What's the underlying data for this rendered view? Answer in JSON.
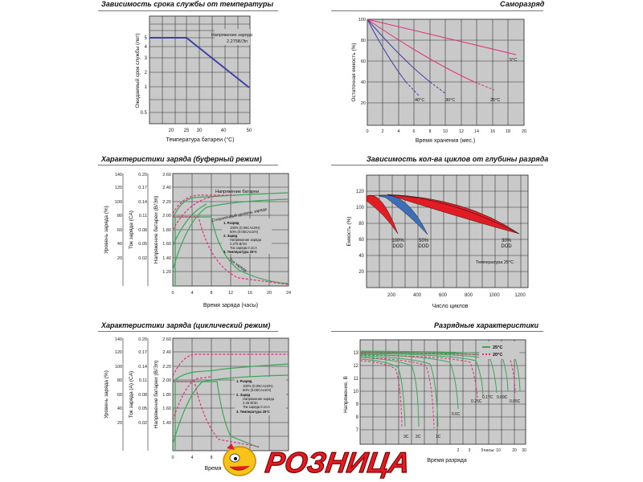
{
  "charts": {
    "life": {
      "title": "Зависимость срока службы от температуры",
      "ylabel": "Ожидаемый срок службы (лет)",
      "xlabel": "Температура батареи (°C)",
      "annotation": [
        "Напряжение заряда",
        "2.275В/Эл"
      ],
      "xticks": [
        "20",
        "25",
        "30",
        "40",
        "50"
      ],
      "yticks": [
        "5",
        "4",
        "3",
        "2",
        "1",
        "0.5"
      ]
    },
    "selfdis": {
      "title": "Саморазряд",
      "ylabel": "Остаточная емкость (%)",
      "xlabel": "Время хранения (мес.)",
      "xticks": [
        "0",
        "2",
        "4",
        "6",
        "8",
        "10",
        "12",
        "14",
        "16",
        "18",
        "20"
      ],
      "yticks": [
        "100",
        "80",
        "60",
        "40",
        "20"
      ],
      "labels": [
        "40°C",
        "30°C",
        "25°C",
        "5°C"
      ]
    },
    "float": {
      "title": "Характеристики  заряда (буферный режим)",
      "ylabel1": "Уровень заряда (%)",
      "ylabel2": "Ток заряда (CA)",
      "ylabel3": "Напряжение батареи (В/Эл)",
      "xlabel": "Время заряда (часы)",
      "y1ticks": [
        "140",
        "120",
        "100",
        "80",
        "60",
        "40",
        "20"
      ],
      "y2ticks": [
        "0.20",
        "0.17",
        "0.14",
        "0.11",
        "0.08",
        "0.05",
        "0.02"
      ],
      "y3ticks": [
        "2.60",
        "2.40",
        "2.20",
        "2.00",
        "1.80",
        "1.60",
        "1.40",
        "1.20"
      ],
      "xticks": [
        "0",
        "4",
        "8",
        "12",
        "16",
        "20",
        "24"
      ],
      "curve_labels": [
        "Напряжение батареи",
        "Сохраненный уровень заряда",
        "Ток заряда"
      ],
      "legend": [
        "1. Разряд",
        "100% (0.05CAx20ч)",
        "50% (0.05CAx10ч)",
        "2. Заряд",
        "Напряжение заряда",
        "2.275 В/Эл",
        "Ток заряда 0.1CA",
        "3. Температура 25°C"
      ]
    },
    "cycles": {
      "title": "Зависимость кол-ва циклов от глубины разряда",
      "ylabel": "Емкость (%)",
      "xlabel": "Число циклов",
      "xticks": [
        "200",
        "400",
        "600",
        "800",
        "1000",
        "1200"
      ],
      "yticks": [
        "120",
        "100",
        "80",
        "60",
        "40",
        "20"
      ],
      "labels": [
        "100%",
        "DOD",
        "50%",
        "DOD",
        "30%",
        "DOD"
      ],
      "note": "Температура 25°C"
    },
    "cyclic": {
      "title": "Характеристики  заряда (циклический режим)",
      "ylabel1": "Уровень заряда (%)",
      "ylabel2": "Ток заряда (A) (CA)",
      "ylabel3": "Напряжение батареи (В/Эл)",
      "xlabel": "Время",
      "y1ticks": [
        "140",
        "120",
        "100",
        "80",
        "60",
        "40",
        "20"
      ],
      "y2ticks": [
        "0.20",
        "0.17",
        "0.14",
        "0.11",
        "0.08",
        "0.05",
        "0.02"
      ],
      "y3ticks": [
        "2.60",
        "2.40",
        "2.20",
        "2.00",
        "1.80",
        "1.60",
        "1.40"
      ],
      "xticks": [
        "0",
        "4",
        "8"
      ],
      "legend": [
        "1. Разряд",
        "100% (0.05CAx20ч)",
        "50% (0.05CAx10ч)",
        "2. Заряд",
        "Напряжение заряда",
        "2.45 В/Эл",
        "Ток заряда 0.1CA",
        "3. Температура 25°C"
      ]
    },
    "discharge": {
      "title": "Разрядные характеристики",
      "ylabel": "Напряжение, В",
      "xlabel": "Время разряда",
      "unit": "часы",
      "xticks_min": [
        "2",
        "4",
        "6",
        "10",
        "20",
        "40",
        "60"
      ],
      "xticks_h": [
        "2",
        "3",
        "5",
        "10",
        "20",
        "30"
      ],
      "yticks": [
        "13",
        "12",
        "11",
        "10",
        "9",
        "8",
        "7"
      ],
      "legend": [
        "25°C",
        "20°C"
      ],
      "rate_labels": [
        "3C",
        "2C",
        "1C",
        "0.6C",
        "0.25C",
        "0.17C",
        "0.09C",
        "0.05C"
      ]
    }
  },
  "colors": {
    "blue": "#3f3fa8",
    "pink": "#e0307a",
    "red": "#e31b23",
    "green": "#3aa757",
    "bg": "#c9c9c9"
  },
  "logo": {
    "text": "РОЗНИЦА"
  }
}
